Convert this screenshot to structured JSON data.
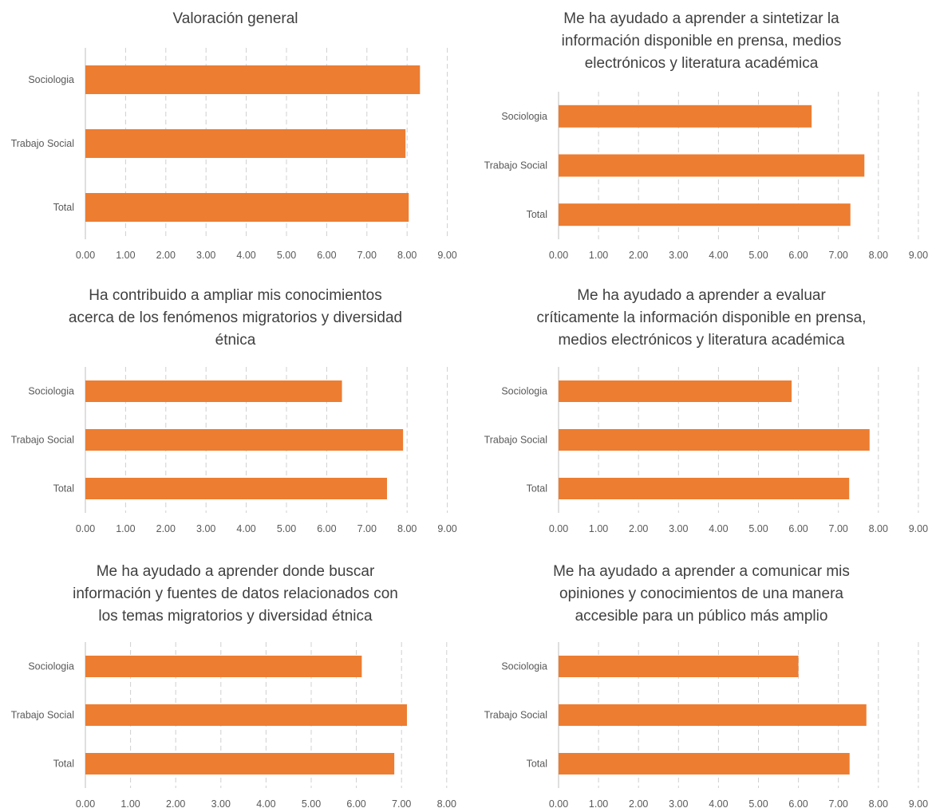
{
  "chart_data": [
    {
      "type": "bar",
      "orientation": "horizontal",
      "title_lines": [
        "Valoración general"
      ],
      "categories": [
        "Sociologia",
        "Trabajo Social",
        "Total"
      ],
      "values": [
        8.32,
        7.96,
        8.04
      ],
      "xticks": [
        "0.00",
        "1.00",
        "2.00",
        "3.00",
        "4.00",
        "5.00",
        "6.00",
        "7.00",
        "8.00",
        "9.00"
      ],
      "xlim": [
        0,
        9
      ],
      "grid": "vertical-dashed",
      "color": "#ED7D31"
    },
    {
      "type": "bar",
      "orientation": "horizontal",
      "title_lines": [
        "Me ha ayudado a aprender a sintetizar la",
        "información disponible en prensa, medios",
        "electrónicos y literatura académica"
      ],
      "categories": [
        "Sociologia",
        "Trabajo Social",
        "Total"
      ],
      "values": [
        6.33,
        7.65,
        7.3
      ],
      "xticks": [
        "0.00",
        "1.00",
        "2.00",
        "3.00",
        "4.00",
        "5.00",
        "6.00",
        "7.00",
        "8.00",
        "9.00"
      ],
      "xlim": [
        0,
        9
      ],
      "grid": "vertical-dashed",
      "color": "#ED7D31"
    },
    {
      "type": "bar",
      "orientation": "horizontal",
      "title_lines": [
        "Ha contribuido a ampliar mis conocimientos",
        "acerca de los fenómenos migratorios y diversidad",
        "étnica"
      ],
      "categories": [
        "Sociologia",
        "Trabajo Social",
        "Total"
      ],
      "values": [
        6.38,
        7.9,
        7.5
      ],
      "xticks": [
        "0.00",
        "1.00",
        "2.00",
        "3.00",
        "4.00",
        "5.00",
        "6.00",
        "7.00",
        "8.00",
        "9.00"
      ],
      "xlim": [
        0,
        9
      ],
      "grid": "vertical-dashed",
      "color": "#ED7D31"
    },
    {
      "type": "bar",
      "orientation": "horizontal",
      "title_lines": [
        "Me ha ayudado a aprender a evaluar",
        "críticamente la información disponible en prensa,",
        "medios electrónicos y literatura académica"
      ],
      "categories": [
        "Sociologia",
        "Trabajo Social",
        "Total"
      ],
      "values": [
        5.83,
        7.78,
        7.27
      ],
      "xticks": [
        "0.00",
        "1.00",
        "2.00",
        "3.00",
        "4.00",
        "5.00",
        "6.00",
        "7.00",
        "8.00",
        "9.00"
      ],
      "xlim": [
        0,
        9
      ],
      "grid": "vertical-dashed",
      "color": "#ED7D31"
    },
    {
      "type": "bar",
      "orientation": "horizontal",
      "title_lines": [
        "Me ha ayudado a aprender donde buscar",
        "información y fuentes de datos relacionados con",
        "los temas migratorios y diversidad étnica"
      ],
      "categories": [
        "Sociologia",
        "Trabajo Social",
        "Total"
      ],
      "values": [
        6.12,
        7.12,
        6.84
      ],
      "xticks": [
        "0.00",
        "1.00",
        "2.00",
        "3.00",
        "4.00",
        "5.00",
        "6.00",
        "7.00",
        "8.00"
      ],
      "xlim": [
        0,
        8
      ],
      "grid": "vertical-dashed",
      "color": "#ED7D31"
    },
    {
      "type": "bar",
      "orientation": "horizontal",
      "title_lines": [
        "Me ha ayudado a aprender a comunicar mis",
        "opiniones y conocimientos de una manera",
        "accesible para un público más amplio"
      ],
      "categories": [
        "Sociologia",
        "Trabajo Social",
        "Total"
      ],
      "values": [
        6.0,
        7.7,
        7.28
      ],
      "xticks": [
        "0.00",
        "1.00",
        "2.00",
        "3.00",
        "4.00",
        "5.00",
        "6.00",
        "7.00",
        "8.00",
        "9.00"
      ],
      "xlim": [
        0,
        9
      ],
      "grid": "vertical-dashed",
      "color": "#ED7D31"
    }
  ]
}
